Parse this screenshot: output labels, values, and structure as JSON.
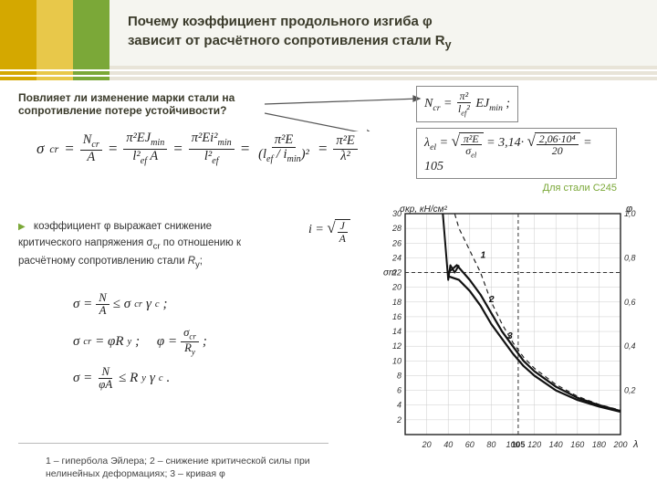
{
  "header": {
    "title_line1": "Почему коэффициент продольного изгиба φ",
    "title_line2": "зависит от расчётного сопротивления стали R",
    "title_sub": "y",
    "stripe_colors": [
      "#d4a800",
      "#e8c84a",
      "#7ba838"
    ]
  },
  "question": {
    "line1": "Повлияет ли изменение марки стали на",
    "line2": "сопротивление потере устойчивости?"
  },
  "formulas": {
    "sigma_cr_chain": "σ_cr = N_cr/A = π²EJ_min/(l²_ef A) = π²Ei²_min/l²_ef = π²E/(l_ef/i_min)² = π²E/λ²",
    "ncr_box": "N_cr = π²/l²_ef · EJ_min ;",
    "lambda_result": "= 105",
    "lambda_value": "3,14",
    "e_value": "2,06·10⁴",
    "sigma_val": "20",
    "i_def": "i = √(J/A)",
    "line1": "σ = N/A ≤ σ_cr γ_c ;",
    "line2a": "σ_cr = φR_y ;",
    "line2b": "φ = σ_cr/R_y ;",
    "line3": "σ = N/(φA) ≤ R_y γ_c ."
  },
  "steel_note": "Для стали С245",
  "explain": {
    "t1": "коэффициент φ выражает снижение",
    "t2": "критического напряжения σ",
    "t2sub": "cr",
    "t3": " по отношению к",
    "t4": "расчётному сопротивлению стали ",
    "t4i": "R",
    "t4sub": "y",
    "t5": ";"
  },
  "caption": {
    "text": "1 – гипербола Эйлера; 2 – снижение критической силы при нелинейных деформациях; 3 – кривая φ"
  },
  "chart": {
    "type": "line",
    "xlabel": "λ",
    "ylabel_top": "σкр, кН/см²",
    "ylabel_right": "φ",
    "xlim": [
      0,
      200
    ],
    "ylim_left": [
      0,
      30
    ],
    "xtick_step": 20,
    "ytick_left": [
      2,
      4,
      6,
      8,
      10,
      12,
      14,
      16,
      18,
      20,
      22,
      24,
      26,
      28,
      30
    ],
    "ytick_right_labels": [
      "0,2",
      "0,4",
      "0,6",
      "0,8",
      "1,0"
    ],
    "y_special": "σт",
    "curve1_euler": {
      "lambda": [
        46,
        50,
        60,
        70,
        80,
        90,
        100,
        110,
        120,
        140,
        160,
        180,
        200
      ],
      "sigma": [
        30,
        28,
        25,
        22,
        18,
        15,
        12.5,
        10.5,
        9,
        6.8,
        5.2,
        4.1,
        3.3
      ],
      "style": "dashed",
      "color": "#222222",
      "width": 1.2
    },
    "curve2_nonlin": {
      "lambda": [
        40,
        48,
        60,
        70,
        80,
        90,
        100,
        110,
        120,
        140,
        160,
        180,
        200
      ],
      "sigma": [
        22,
        23,
        21,
        19,
        16.5,
        14,
        12,
        10,
        8.6,
        6.5,
        5,
        4,
        3.2
      ],
      "style": "solid",
      "color": "#111111",
      "width": 2.2
    },
    "curve3_phi": {
      "lambda": [
        40,
        50,
        60,
        70,
        80,
        90,
        100,
        110,
        120,
        140,
        160,
        180,
        200
      ],
      "sigma": [
        21.5,
        21,
        19.5,
        17.5,
        15,
        13,
        11,
        9.3,
        8,
        6,
        4.7,
        3.8,
        3.1
      ],
      "style": "solid",
      "color": "#111111",
      "width": 2.2
    },
    "phi_drop": {
      "lambda": [
        35,
        40,
        42,
        46,
        50
      ],
      "sigma": [
        30,
        21,
        23,
        22,
        23
      ],
      "style": "solid",
      "color": "#111111",
      "width": 2.0
    },
    "sigma_t_line": {
      "y": 22,
      "style": "dashed",
      "color": "#333333"
    },
    "lambda_105_line": {
      "x": 105,
      "style": "dashed",
      "color": "#333333"
    },
    "markers": [
      {
        "label": "1",
        "x": 70,
        "y": 24
      },
      {
        "label": "2",
        "x": 78,
        "y": 18
      },
      {
        "label": "3",
        "x": 95,
        "y": 13
      }
    ],
    "background_color": "#ffffff",
    "grid_color": "#cccccc",
    "axis_color": "#222222",
    "font_size": 9
  },
  "colors": {
    "accent_green": "#7ba838",
    "accent_gold": "#d4a800",
    "text": "#333333"
  }
}
